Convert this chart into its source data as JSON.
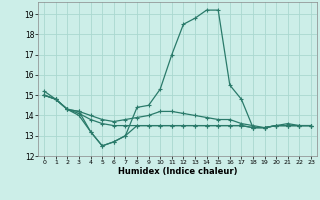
{
  "xlabel": "Humidex (Indice chaleur)",
  "bg_color": "#cceee8",
  "grid_color": "#aad8d0",
  "line_color": "#2a7a6a",
  "xlim": [
    -0.5,
    23.5
  ],
  "ylim": [
    12,
    19.6
  ],
  "yticks": [
    12,
    13,
    14,
    15,
    16,
    17,
    18,
    19
  ],
  "xticks": [
    0,
    1,
    2,
    3,
    4,
    5,
    6,
    7,
    8,
    9,
    10,
    11,
    12,
    13,
    14,
    15,
    16,
    17,
    18,
    19,
    20,
    21,
    22,
    23
  ],
  "series": [
    {
      "x": [
        0,
        1,
        2,
        3,
        4,
        5,
        6,
        7,
        8,
        9,
        10,
        11,
        12,
        13,
        14,
        15,
        16,
        17,
        18,
        19,
        20,
        21,
        22,
        23
      ],
      "y": [
        15.2,
        14.8,
        14.3,
        14.2,
        13.2,
        12.5,
        12.7,
        13.0,
        14.4,
        14.5,
        15.3,
        17.0,
        18.5,
        18.8,
        19.2,
        19.2,
        15.5,
        14.8,
        13.4,
        13.4,
        13.5,
        13.6,
        13.5,
        13.5
      ]
    },
    {
      "x": [
        0,
        1,
        2,
        3,
        4,
        5,
        6,
        7,
        8,
        9,
        10,
        11,
        12,
        13,
        14,
        15,
        16,
        17,
        18,
        19,
        20,
        21,
        22,
        23
      ],
      "y": [
        15.0,
        14.8,
        14.3,
        14.2,
        14.0,
        13.8,
        13.7,
        13.8,
        13.9,
        14.0,
        14.2,
        14.2,
        14.1,
        14.0,
        13.9,
        13.8,
        13.8,
        13.6,
        13.5,
        13.4,
        13.5,
        13.5,
        13.5,
        13.5
      ]
    },
    {
      "x": [
        0,
        1,
        2,
        3,
        4,
        5,
        6,
        7,
        8,
        9,
        10,
        11,
        12,
        13,
        14,
        15,
        16,
        17,
        18,
        19,
        20,
        21,
        22,
        23
      ],
      "y": [
        15.0,
        14.8,
        14.3,
        14.1,
        13.8,
        13.6,
        13.5,
        13.5,
        13.5,
        13.5,
        13.5,
        13.5,
        13.5,
        13.5,
        13.5,
        13.5,
        13.5,
        13.5,
        13.4,
        13.4,
        13.5,
        13.5,
        13.5,
        13.5
      ]
    },
    {
      "x": [
        0,
        1,
        2,
        3,
        4,
        5,
        6,
        7,
        8,
        9,
        10,
        11,
        12,
        13,
        14,
        15,
        16,
        17,
        18,
        19,
        20,
        21,
        22,
        23
      ],
      "y": [
        15.0,
        14.8,
        14.3,
        14.0,
        13.2,
        12.5,
        12.7,
        13.0,
        13.5,
        13.5,
        13.5,
        13.5,
        13.5,
        13.5,
        13.5,
        13.5,
        13.5,
        13.5,
        13.4,
        13.4,
        13.5,
        13.5,
        13.5,
        13.5
      ]
    }
  ]
}
